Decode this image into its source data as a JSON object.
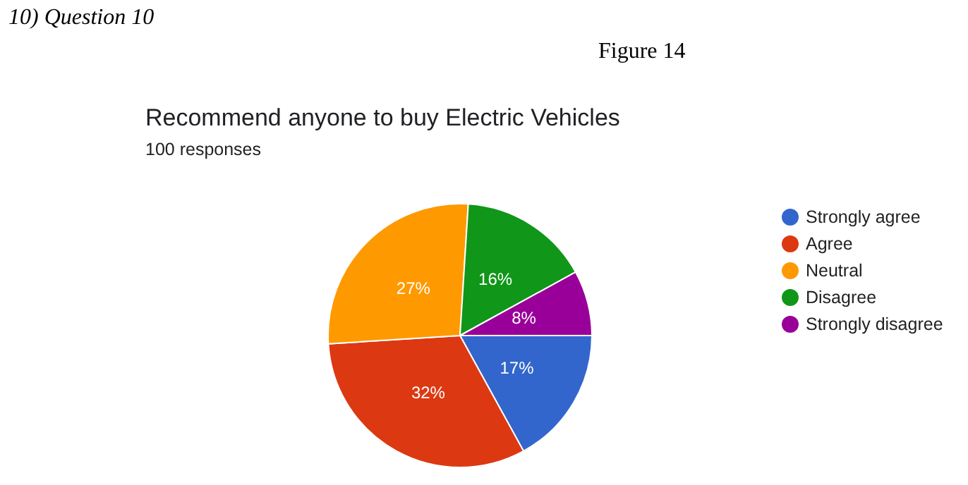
{
  "chart_data": {
    "type": "pie",
    "title": "Recommend anyone to buy Electric Vehicles",
    "subtitle": "100 responses",
    "annotations": [
      "10)  Question 10",
      "Figure 14"
    ],
    "categories": [
      "Strongly agree",
      "Agree",
      "Neutral",
      "Disagree",
      "Strongly disagree"
    ],
    "values": [
      17,
      32,
      27,
      16,
      8
    ],
    "value_labels": [
      "17%",
      "32%",
      "27%",
      "16%",
      "8%"
    ],
    "colors": [
      "#3366cc",
      "#dc3912",
      "#ff9900",
      "#109618",
      "#990099"
    ],
    "legend": "right"
  }
}
